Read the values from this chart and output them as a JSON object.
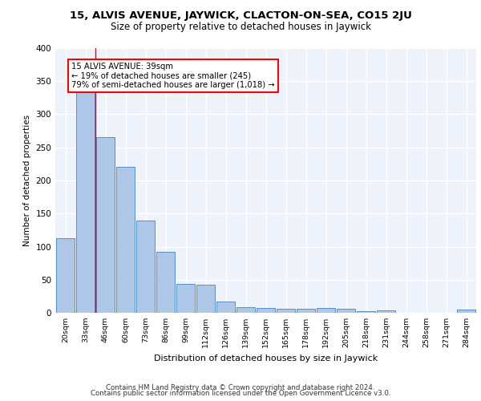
{
  "title1": "15, ALVIS AVENUE, JAYWICK, CLACTON-ON-SEA, CO15 2JU",
  "title2": "Size of property relative to detached houses in Jaywick",
  "xlabel": "Distribution of detached houses by size in Jaywick",
  "ylabel": "Number of detached properties",
  "categories": [
    "20sqm",
    "33sqm",
    "46sqm",
    "60sqm",
    "73sqm",
    "86sqm",
    "99sqm",
    "112sqm",
    "126sqm",
    "139sqm",
    "152sqm",
    "165sqm",
    "178sqm",
    "192sqm",
    "205sqm",
    "218sqm",
    "231sqm",
    "244sqm",
    "258sqm",
    "271sqm",
    "284sqm"
  ],
  "values": [
    113,
    335,
    265,
    221,
    140,
    92,
    44,
    43,
    17,
    9,
    7,
    6,
    6,
    7,
    6,
    2,
    4,
    0,
    0,
    0,
    5
  ],
  "bar_color": "#aec6e8",
  "bar_edge_color": "#5a8fc2",
  "annotation_text": "15 ALVIS AVENUE: 39sqm\n← 19% of detached houses are smaller (245)\n79% of semi-detached houses are larger (1,018) →",
  "vline_x": 1.5,
  "ylim": [
    0,
    400
  ],
  "yticks": [
    0,
    50,
    100,
    150,
    200,
    250,
    300,
    350,
    400
  ],
  "footer1": "Contains HM Land Registry data © Crown copyright and database right 2024.",
  "footer2": "Contains public sector information licensed under the Open Government Licence v3.0.",
  "bg_color": "#eef2fa",
  "grid_color": "#ffffff",
  "title1_fontsize": 9.5,
  "title2_fontsize": 8.5
}
